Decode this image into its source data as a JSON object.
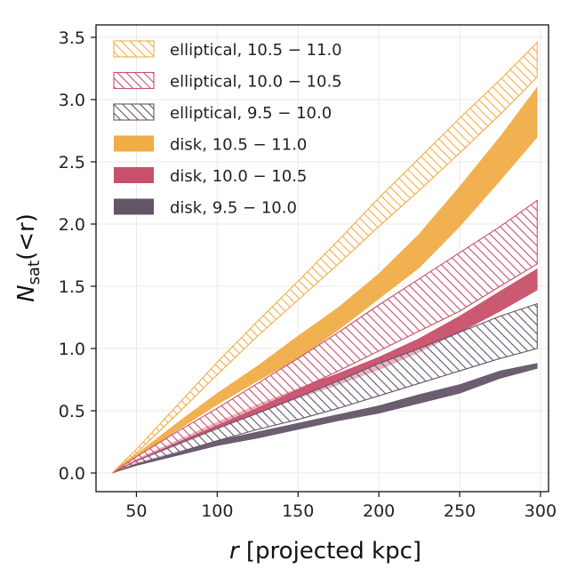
{
  "chart_data": {
    "type": "area",
    "xlabel_italic": "r",
    "xlabel_rest": " [projected kpc]",
    "ylabel_main": "N",
    "ylabel_sub": "sat",
    "ylabel_rest": "(<r)",
    "xlim": [
      25,
      305
    ],
    "ylim": [
      -0.15,
      3.6
    ],
    "x_ticks": [
      50,
      100,
      150,
      200,
      250,
      300
    ],
    "x_tick_labels": [
      "50",
      "100",
      "150",
      "200",
      "250",
      "300"
    ],
    "y_ticks": [
      0.0,
      0.5,
      1.0,
      1.5,
      2.0,
      2.5,
      3.0,
      3.5
    ],
    "y_tick_labels": [
      "0.0",
      "0.5",
      "1.0",
      "1.5",
      "2.0",
      "2.5",
      "3.0",
      "3.5"
    ],
    "grid": true,
    "legend_position": "top-left",
    "x": [
      35,
      50,
      75,
      100,
      125,
      150,
      175,
      200,
      225,
      250,
      275,
      298
    ],
    "series": [
      {
        "name": "disk, 9.5 − 10.0",
        "style": "solid",
        "color": "#645468",
        "lower": [
          0.0,
          0.06,
          0.14,
          0.22,
          0.28,
          0.35,
          0.42,
          0.48,
          0.56,
          0.64,
          0.76,
          0.84
        ],
        "upper": [
          0.0,
          0.08,
          0.17,
          0.26,
          0.33,
          0.4,
          0.47,
          0.54,
          0.63,
          0.71,
          0.82,
          0.88
        ]
      },
      {
        "name": "disk, 10.0 − 10.5",
        "style": "solid",
        "color": "#c8506a",
        "lower": [
          0.0,
          0.09,
          0.22,
          0.35,
          0.48,
          0.6,
          0.71,
          0.83,
          0.97,
          1.13,
          1.3,
          1.47
        ],
        "upper": [
          0.0,
          0.11,
          0.26,
          0.41,
          0.55,
          0.68,
          0.8,
          0.93,
          1.08,
          1.26,
          1.46,
          1.64
        ]
      },
      {
        "name": "disk, 10.5 − 11.0",
        "style": "solid",
        "color": "#f0ad48",
        "lower": [
          0.0,
          0.13,
          0.34,
          0.55,
          0.74,
          0.92,
          1.15,
          1.4,
          1.65,
          1.98,
          2.35,
          2.7
        ],
        "upper": [
          0.0,
          0.15,
          0.4,
          0.64,
          0.86,
          1.1,
          1.33,
          1.6,
          1.92,
          2.3,
          2.7,
          3.1
        ]
      },
      {
        "name": "elliptical, 9.5 − 10.0",
        "style": "hatched",
        "color": "#645468",
        "lower": [
          0.0,
          0.07,
          0.16,
          0.26,
          0.35,
          0.43,
          0.52,
          0.62,
          0.72,
          0.82,
          0.92,
          1.0
        ],
        "upper": [
          0.0,
          0.1,
          0.23,
          0.36,
          0.48,
          0.61,
          0.74,
          0.88,
          1.0,
          1.13,
          1.26,
          1.36
        ]
      },
      {
        "name": "elliptical, 10.0 − 10.5",
        "style": "hatched",
        "color": "#c8506a",
        "lower": [
          0.0,
          0.1,
          0.24,
          0.38,
          0.52,
          0.67,
          0.82,
          0.98,
          1.14,
          1.3,
          1.5,
          1.68
        ],
        "upper": [
          0.0,
          0.13,
          0.33,
          0.52,
          0.72,
          0.92,
          1.13,
          1.35,
          1.56,
          1.77,
          1.98,
          2.19
        ]
      },
      {
        "name": "elliptical, 10.5 − 11.0",
        "style": "hatched",
        "color": "#f0ad48",
        "lower": [
          0.0,
          0.16,
          0.47,
          0.79,
          1.1,
          1.39,
          1.68,
          1.98,
          2.27,
          2.57,
          2.88,
          3.18
        ],
        "upper": [
          0.0,
          0.19,
          0.54,
          0.89,
          1.22,
          1.54,
          1.87,
          2.21,
          2.53,
          2.85,
          3.16,
          3.46
        ]
      }
    ],
    "legend": [
      {
        "label_name": "elliptical",
        "label_range": "10.5 − 11.0",
        "style": "hatched",
        "color": "#f0ad48"
      },
      {
        "label_name": "elliptical",
        "label_range": "10.0 − 10.5",
        "style": "hatched",
        "color": "#c8506a"
      },
      {
        "label_name": "elliptical",
        "label_range": "9.5 − 10.0",
        "style": "hatched",
        "color": "#645468"
      },
      {
        "label_name": "disk",
        "label_range": "10.5 − 11.0",
        "style": "solid",
        "color": "#f0ad48"
      },
      {
        "label_name": "disk",
        "label_range": "10.0 − 10.5",
        "style": "solid",
        "color": "#c8506a"
      },
      {
        "label_name": "disk",
        "label_range": "9.5 − 10.0",
        "style": "solid",
        "color": "#645468"
      }
    ]
  }
}
